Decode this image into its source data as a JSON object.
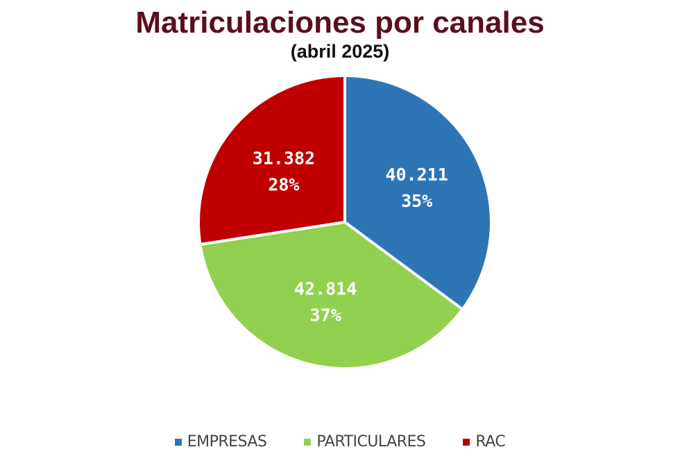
{
  "header": {
    "title": "Matriculaciones por canales",
    "subtitle": "(abril 2025)"
  },
  "chart_data": {
    "type": "pie",
    "title": "Matriculaciones por canales",
    "subtitle": "(abril 2025)",
    "legend_position": "bottom",
    "slices": [
      {
        "name": "EMPRESAS",
        "value": 40211,
        "value_label": "40.211",
        "percent_label": "35%",
        "color": "#2e75b6"
      },
      {
        "name": "PARTICULARES",
        "value": 42814,
        "value_label": "42.814",
        "percent_label": "37%",
        "color": "#92d050"
      },
      {
        "name": "RAC",
        "value": 31382,
        "value_label": "31.382",
        "percent_label": "28%",
        "color": "#c00000"
      }
    ]
  }
}
